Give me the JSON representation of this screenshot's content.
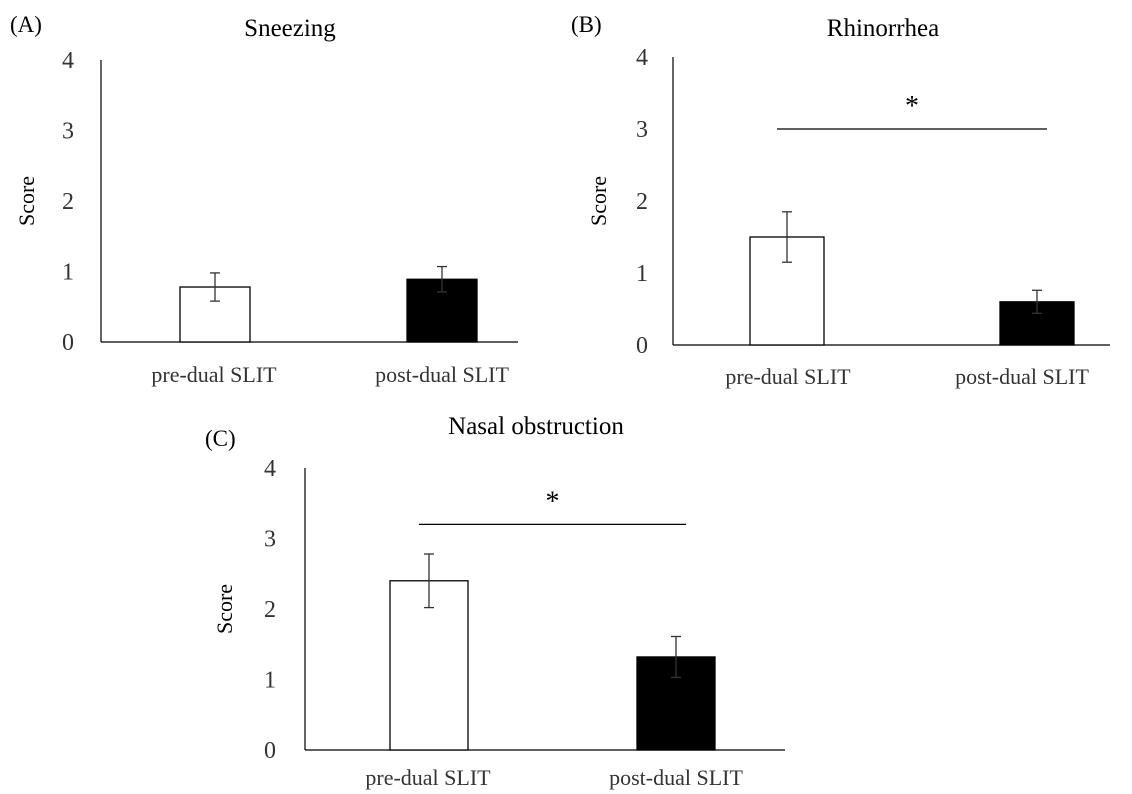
{
  "chart_data": [
    {
      "type": "bar",
      "panel_label": "(A)",
      "title": "Sneezing",
      "ylabel": "Score",
      "ylim": [
        0,
        4
      ],
      "yticks": [
        "0",
        "1",
        "2",
        "3",
        "4"
      ],
      "categories": [
        "pre-dual SLIT",
        "post-dual SLIT"
      ],
      "values": [
        0.78,
        0.89
      ],
      "errors": [
        0.2,
        0.18
      ],
      "colors": [
        "#ffffff",
        "#000000"
      ],
      "significance": null
    },
    {
      "type": "bar",
      "panel_label": "(B)",
      "title": "Rhinorrhea",
      "ylabel": "Score",
      "ylim": [
        0,
        4
      ],
      "yticks": [
        "0",
        "1",
        "2",
        "3",
        "4"
      ],
      "categories": [
        "pre-dual SLIT",
        "post-dual SLIT"
      ],
      "values": [
        1.5,
        0.6
      ],
      "errors": [
        0.35,
        0.16
      ],
      "colors": [
        "#ffffff",
        "#000000"
      ],
      "significance": {
        "label": "*",
        "y": 3.0
      }
    },
    {
      "type": "bar",
      "panel_label": "(C)",
      "title": "Nasal obstruction",
      "ylabel": "Score",
      "ylim": [
        0,
        4
      ],
      "yticks": [
        "0",
        "1",
        "2",
        "3",
        "4"
      ],
      "categories": [
        "pre-dual SLIT",
        "post-dual SLIT"
      ],
      "values": [
        2.4,
        1.32
      ],
      "errors": [
        0.38,
        0.29
      ],
      "colors": [
        "#ffffff",
        "#000000"
      ],
      "significance": {
        "label": "*",
        "y": 3.2
      }
    }
  ]
}
